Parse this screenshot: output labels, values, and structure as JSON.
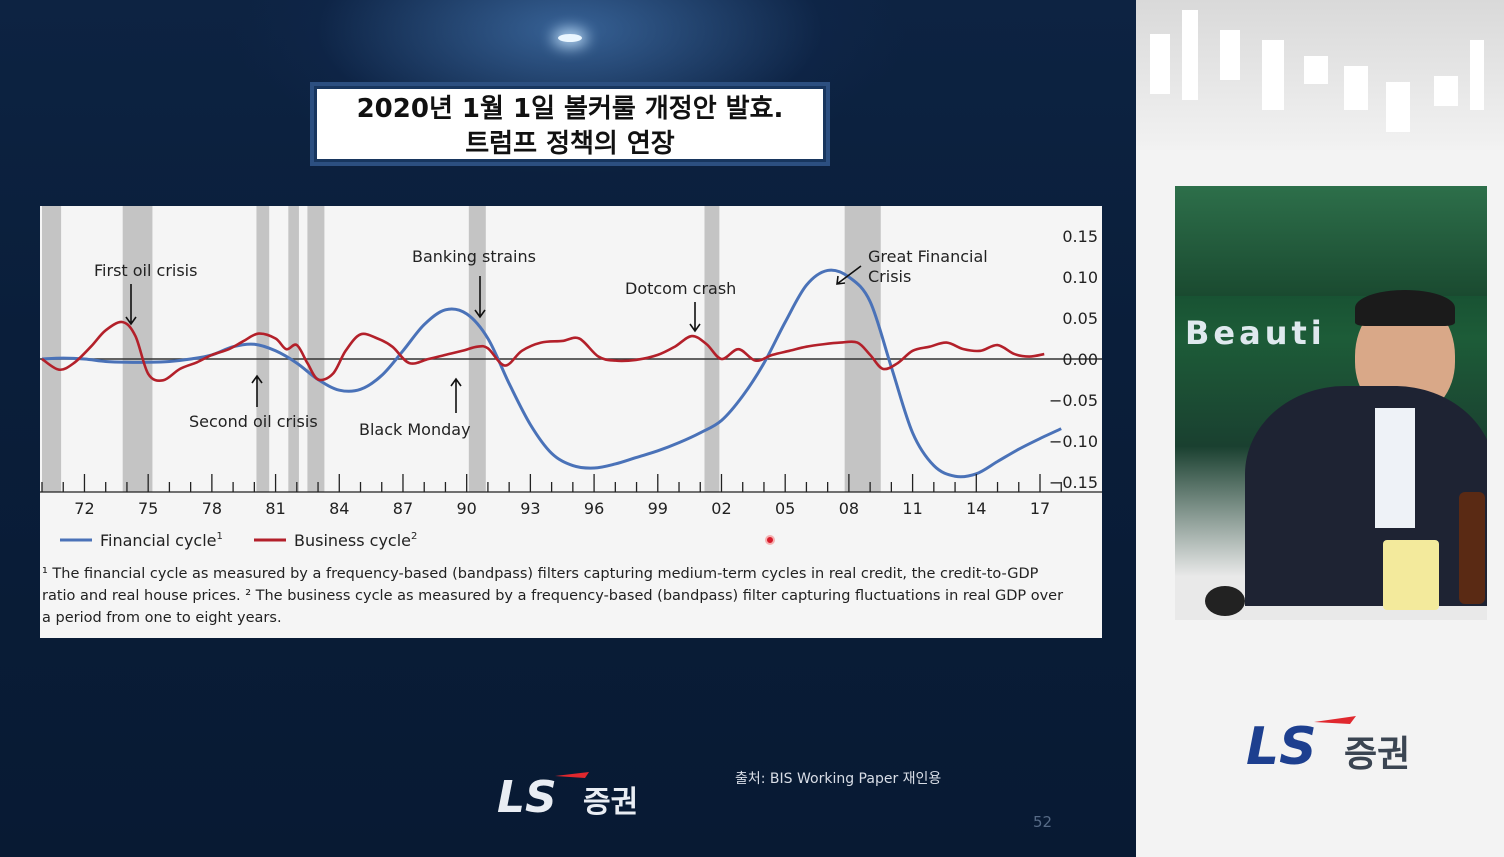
{
  "slide": {
    "title_line1": "2020년 1월 1일 볼커룰 개정안 발효.",
    "title_line2": "트럼프 정책의 연장",
    "footnote_line1": "¹ The financial cycle as measured by a frequency-based (bandpass) filters capturing medium-term cycles in real credit, the credit-to-GDP",
    "footnote_line2": "ratio and real house prices.   ² The business cycle as measured by a frequency-based (bandpass) filter capturing fluctuations in real GDP over",
    "footnote_line3": "a period from one to eight years.",
    "source": "출처: BIS Working Paper 재인용",
    "page_number": "52",
    "logo_text": "증권",
    "logo_mark": "LS"
  },
  "camera": {
    "logo_text": "증권",
    "logo_mark": "LS",
    "background_text": "Beauti"
  },
  "colors": {
    "financial": "#4a72b8",
    "business": "#b3202a",
    "recession_band": "#c4c4c4"
  },
  "chart_data": {
    "type": "line",
    "xlim": [
      1969.8,
      2019
    ],
    "ylim": [
      -0.15,
      0.15
    ],
    "x_ticks": [
      "72",
      "75",
      "78",
      "81",
      "84",
      "87",
      "90",
      "93",
      "96",
      "99",
      "02",
      "05",
      "08",
      "11",
      "14",
      "17"
    ],
    "x_tick_years": [
      1972,
      1975,
      1978,
      1981,
      1984,
      1987,
      1990,
      1993,
      1996,
      1999,
      2002,
      2005,
      2008,
      2011,
      2014,
      2017
    ],
    "y_ticks": [
      "0.15",
      "0.10",
      "0.05",
      "0.00",
      "−0.05",
      "−0.10",
      "−0.15"
    ],
    "y_tick_values": [
      0.15,
      0.1,
      0.05,
      0,
      -0.05,
      -0.1,
      -0.15
    ],
    "y_axis_side": "right",
    "recession_bands": [
      [
        1970,
        1970.9
      ],
      [
        1973.8,
        1975.2
      ],
      [
        1980.1,
        1980.7
      ],
      [
        1981.6,
        1982.1
      ],
      [
        1982.5,
        1983.3
      ],
      [
        1990.1,
        1990.9
      ],
      [
        2001.2,
        2001.9
      ],
      [
        2007.8,
        2009.5
      ]
    ],
    "series": [
      {
        "name": "Financial cycle",
        "superscript": "1",
        "x": [
          1970,
          1971,
          1972,
          1973,
          1974,
          1975,
          1976,
          1977,
          1978,
          1979,
          1980,
          1981,
          1982,
          1983,
          1984,
          1985,
          1986,
          1987,
          1988,
          1989,
          1990,
          1991,
          1992,
          1993,
          1994,
          1995,
          1996,
          1997,
          1998,
          1999,
          2000,
          2001,
          2002,
          2003,
          2004,
          2005,
          2006,
          2007,
          2008,
          2009,
          2010,
          2011,
          2012,
          2013,
          2014,
          2015,
          2016,
          2017,
          2018
        ],
        "y": [
          0,
          0.001,
          0.0,
          -0.003,
          -0.004,
          -0.004,
          -0.003,
          0.0,
          0.005,
          0.015,
          0.018,
          0.01,
          -0.005,
          -0.025,
          -0.038,
          -0.037,
          -0.02,
          0.01,
          0.042,
          0.06,
          0.055,
          0.025,
          -0.03,
          -0.08,
          -0.115,
          -0.13,
          -0.133,
          -0.128,
          -0.12,
          -0.112,
          -0.102,
          -0.09,
          -0.075,
          -0.045,
          -0.005,
          0.045,
          0.09,
          0.108,
          0.1,
          0.07,
          -0.01,
          -0.09,
          -0.13,
          -0.143,
          -0.14,
          -0.125,
          -0.11,
          -0.097,
          -0.085
        ]
      },
      {
        "name": "Business cycle",
        "superscript": "2",
        "x": [
          1970,
          1970.8,
          1971.5,
          1972.3,
          1973,
          1973.8,
          1974.4,
          1975,
          1975.7,
          1976.5,
          1977.3,
          1978,
          1978.8,
          1979.5,
          1980.2,
          1981,
          1981.5,
          1982,
          1982.5,
          1983,
          1983.7,
          1984.3,
          1985,
          1985.8,
          1986.5,
          1987.3,
          1988.2,
          1989,
          1989.8,
          1990.5,
          1991,
          1991.8,
          1992.6,
          1993.5,
          1994.5,
          1995.3,
          1996.2,
          1997,
          1998,
          1999,
          1999.8,
          2000.6,
          2001.3,
          2002,
          2002.8,
          2003.6,
          2004.4,
          2005.2,
          2006,
          2006.8,
          2007.6,
          2008.4,
          2009,
          2009.6,
          2010.3,
          2011,
          2011.8,
          2012.6,
          2013.4,
          2014.2,
          2015,
          2015.8,
          2016.5,
          2017.2
        ],
        "y": [
          0.0,
          -0.013,
          -0.005,
          0.015,
          0.035,
          0.045,
          0.028,
          -0.018,
          -0.026,
          -0.012,
          -0.004,
          0.005,
          0.012,
          0.022,
          0.031,
          0.025,
          0.012,
          0.017,
          -0.005,
          -0.025,
          -0.018,
          0.01,
          0.03,
          0.025,
          0.015,
          -0.005,
          0.0,
          0.005,
          0.01,
          0.015,
          0.013,
          -0.008,
          0.01,
          0.02,
          0.022,
          0.025,
          0.003,
          -0.002,
          -0.001,
          0.005,
          0.015,
          0.028,
          0.018,
          0.0,
          0.012,
          -0.002,
          0.005,
          0.01,
          0.015,
          0.018,
          0.02,
          0.02,
          0.005,
          -0.012,
          -0.005,
          0.01,
          0.015,
          0.02,
          0.012,
          0.01,
          0.017,
          0.006,
          0.003,
          0.006
        ]
      }
    ],
    "annotations": [
      {
        "id": "ann-first-oil",
        "text": "First oil crisis"
      },
      {
        "id": "ann-second-oil",
        "text": "Second oil crisis"
      },
      {
        "id": "ann-banking",
        "text": "Banking strains"
      },
      {
        "id": "ann-black-monday",
        "text": "Black Monday"
      },
      {
        "id": "ann-dotcom",
        "text": "Dotcom crash"
      },
      {
        "id": "ann-gfc-1",
        "text": "Great Financial"
      },
      {
        "id": "ann-gfc-2",
        "text": "Crisis"
      }
    ],
    "legend_position": "bottom-left",
    "grid": false
  }
}
